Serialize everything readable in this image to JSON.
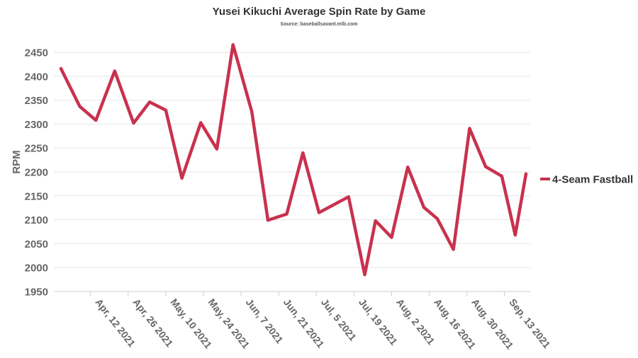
{
  "chart_data": {
    "type": "line",
    "title": "Yusei Kikuchi Average Spin Rate by Game",
    "subtitle": "Source: baseballsavant.mlb.com",
    "xlabel": "",
    "ylabel": "RPM",
    "ylim": [
      1950,
      2475
    ],
    "yticks": [
      1950,
      2000,
      2050,
      2100,
      2150,
      2200,
      2250,
      2300,
      2350,
      2400,
      2450
    ],
    "xlim": [
      "2021-04-01",
      "2021-09-21"
    ],
    "xticks": [
      {
        "date": "2021-04-12",
        "label": "Apr, 12 2021"
      },
      {
        "date": "2021-04-26",
        "label": "Apr, 26 2021"
      },
      {
        "date": "2021-05-10",
        "label": "May, 10 2021"
      },
      {
        "date": "2021-05-24",
        "label": "May, 24 2021"
      },
      {
        "date": "2021-06-07",
        "label": "Jun, 7 2021"
      },
      {
        "date": "2021-06-21",
        "label": "Jun, 21 2021"
      },
      {
        "date": "2021-07-05",
        "label": "Jul, 5 2021"
      },
      {
        "date": "2021-07-19",
        "label": "Jul, 19 2021"
      },
      {
        "date": "2021-08-02",
        "label": "Aug, 2 2021"
      },
      {
        "date": "2021-08-16",
        "label": "Aug, 16 2021"
      },
      {
        "date": "2021-08-30",
        "label": "Aug, 30 2021"
      },
      {
        "date": "2021-09-13",
        "label": "Sep, 13 2021"
      }
    ],
    "grid": true,
    "legend_position": "right",
    "series": [
      {
        "name": "4-Seam Fastball",
        "color": "#c8324e",
        "points": [
          {
            "x": "2021-04-01",
            "y": 2416
          },
          {
            "x": "2021-04-08",
            "y": 2337
          },
          {
            "x": "2021-04-14",
            "y": 2308
          },
          {
            "x": "2021-04-21",
            "y": 2411
          },
          {
            "x": "2021-04-28",
            "y": 2302
          },
          {
            "x": "2021-05-04",
            "y": 2346
          },
          {
            "x": "2021-05-10",
            "y": 2329
          },
          {
            "x": "2021-05-16",
            "y": 2187
          },
          {
            "x": "2021-05-23",
            "y": 2303
          },
          {
            "x": "2021-05-29",
            "y": 2248
          },
          {
            "x": "2021-06-04",
            "y": 2466
          },
          {
            "x": "2021-06-11",
            "y": 2326
          },
          {
            "x": "2021-06-17",
            "y": 2099
          },
          {
            "x": "2021-06-24",
            "y": 2112
          },
          {
            "x": "2021-06-30",
            "y": 2240
          },
          {
            "x": "2021-07-06",
            "y": 2115
          },
          {
            "x": "2021-07-17",
            "y": 2148
          },
          {
            "x": "2021-07-23",
            "y": 1985
          },
          {
            "x": "2021-07-27",
            "y": 2098
          },
          {
            "x": "2021-08-02",
            "y": 2063
          },
          {
            "x": "2021-08-08",
            "y": 2210
          },
          {
            "x": "2021-08-14",
            "y": 2126
          },
          {
            "x": "2021-08-19",
            "y": 2102
          },
          {
            "x": "2021-08-25",
            "y": 2038
          },
          {
            "x": "2021-08-31",
            "y": 2291
          },
          {
            "x": "2021-09-06",
            "y": 2211
          },
          {
            "x": "2021-09-12",
            "y": 2191
          },
          {
            "x": "2021-09-17",
            "y": 2068
          },
          {
            "x": "2021-09-21",
            "y": 2196
          }
        ]
      }
    ]
  }
}
